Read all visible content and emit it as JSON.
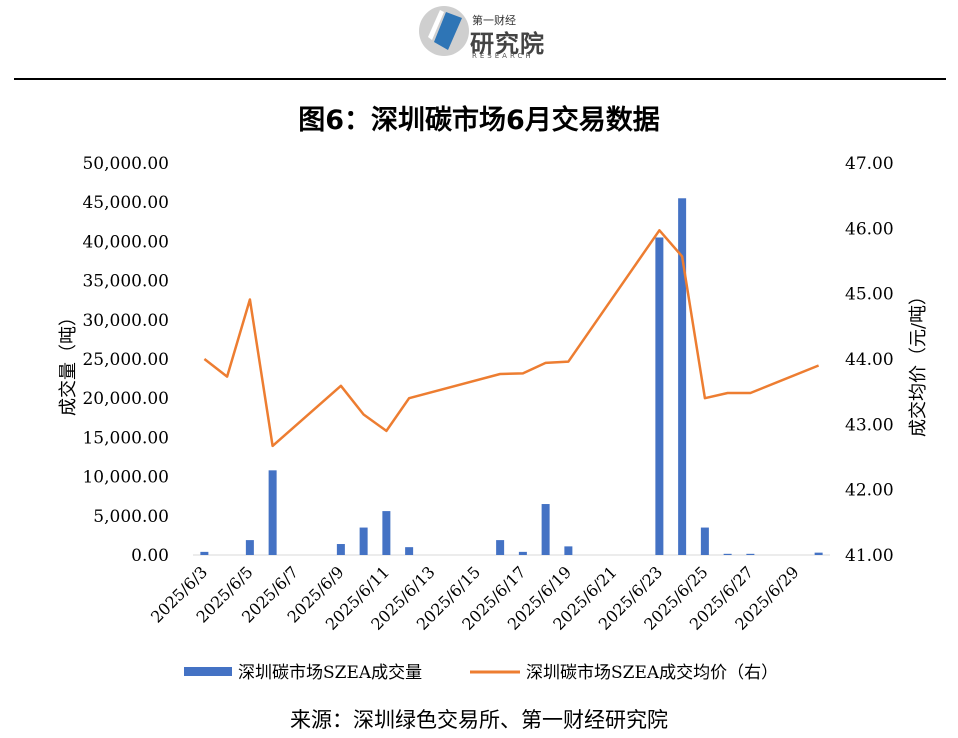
{
  "logo": {
    "line1": "第一财经",
    "line2": "研究院",
    "line3": "RESEARCH"
  },
  "colors": {
    "bar": "#4472C4",
    "line": "#ED7D31",
    "axis": "#000000",
    "logo_blue": "#2E75B6"
  },
  "chart_data": {
    "type": "bar",
    "title": "图6：深圳碳市场6月交易数据",
    "ylabel_left": "成交量（吨）",
    "ylabel_right": "成交均价（元/吨）",
    "ylim_left": [
      0,
      50000
    ],
    "ylim_right": [
      41,
      47
    ],
    "yticks_left": [
      "0.00",
      "5,000.00",
      "10,000.00",
      "15,000.00",
      "20,000.00",
      "25,000.00",
      "30,000.00",
      "35,000.00",
      "40,000.00",
      "45,000.00",
      "50,000.00"
    ],
    "yticks_right": [
      "41.00",
      "42.00",
      "43.00",
      "44.00",
      "45.00",
      "46.00",
      "47.00"
    ],
    "x_tick_labels": [
      "2025/6/3",
      "2025/6/5",
      "2025/6/7",
      "2025/6/9",
      "2025/6/11",
      "2025/6/13",
      "2025/6/15",
      "2025/6/17",
      "2025/6/19",
      "2025/6/21",
      "2025/6/23",
      "2025/6/25",
      "2025/6/27",
      "2025/6/29"
    ],
    "x_dates": [
      "2025/6/3",
      "2025/6/4",
      "2025/6/5",
      "2025/6/6",
      "2025/6/7",
      "2025/6/8",
      "2025/6/9",
      "2025/6/10",
      "2025/6/11",
      "2025/6/12",
      "2025/6/13",
      "2025/6/14",
      "2025/6/15",
      "2025/6/16",
      "2025/6/17",
      "2025/6/18",
      "2025/6/19",
      "2025/6/20",
      "2025/6/21",
      "2025/6/22",
      "2025/6/23",
      "2025/6/24",
      "2025/6/25",
      "2025/6/26",
      "2025/6/27",
      "2025/6/28",
      "2025/6/29",
      "2025/6/30"
    ],
    "grid": false,
    "legend_position": "bottom",
    "series": [
      {
        "name": "深圳碳市场SZEA成交量",
        "type": "bar",
        "axis": "left",
        "values": [
          400,
          null,
          1900,
          10800,
          null,
          null,
          1400,
          3500,
          5600,
          1000,
          null,
          null,
          null,
          1900,
          400,
          6500,
          1100,
          null,
          null,
          null,
          40500,
          45500,
          3500,
          150,
          150,
          null,
          null,
          300
        ]
      },
      {
        "name": "深圳碳市场SZEA成交均价（右）",
        "type": "line",
        "axis": "right",
        "points": [
          [
            "2025/6/3",
            44.0
          ],
          [
            "2025/6/4",
            43.73
          ],
          [
            "2025/6/5",
            44.91
          ],
          [
            "2025/6/6",
            42.67
          ],
          [
            "2025/6/9",
            43.59
          ],
          [
            "2025/6/10",
            43.15
          ],
          [
            "2025/6/11",
            42.9
          ],
          [
            "2025/6/12",
            43.4
          ],
          [
            "2025/6/16",
            43.77
          ],
          [
            "2025/6/17",
            43.78
          ],
          [
            "2025/6/18",
            43.94
          ],
          [
            "2025/6/19",
            43.96
          ],
          [
            "2025/6/23",
            45.97
          ],
          [
            "2025/6/24",
            45.57
          ],
          [
            "2025/6/25",
            43.4
          ],
          [
            "2025/6/26",
            43.48
          ],
          [
            "2025/6/27",
            43.48
          ],
          [
            "2025/6/30",
            43.9
          ]
        ]
      }
    ]
  },
  "source": "来源：深圳绿色交易所、第一财经研究院"
}
